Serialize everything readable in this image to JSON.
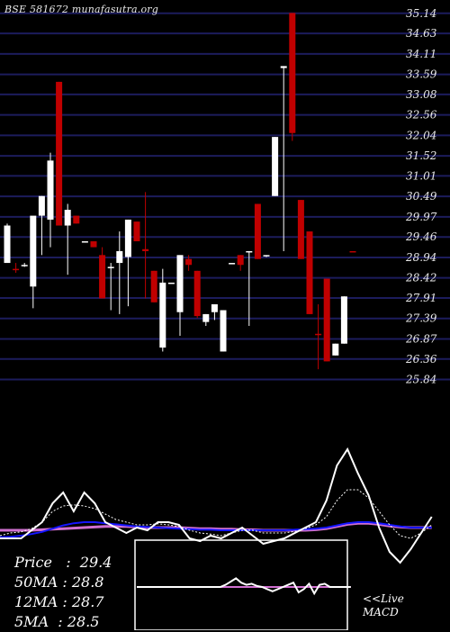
{
  "chart_data": {
    "type": "candlestick",
    "title": "BSE 581672 munafasutra.org",
    "ylim": [
      25.6,
      35.25
    ],
    "y_ticks": [
      "35.14",
      "34.63",
      "34.11",
      "33.59",
      "33.08",
      "32.56",
      "32.04",
      "31.52",
      "31.01",
      "30.49",
      "29.97",
      "29.46",
      "28.94",
      "28.42",
      "27.91",
      "27.39",
      "26.87",
      "26.36",
      "25.84"
    ],
    "candles": [
      {
        "open": 29.75,
        "high": 29.8,
        "low": 28.85,
        "close": 28.8,
        "dir": "up"
      },
      {
        "open": 28.65,
        "high": 28.8,
        "low": 28.55,
        "close": 28.65,
        "dir": "down"
      },
      {
        "open": 28.75,
        "high": 28.8,
        "low": 28.7,
        "close": 28.75,
        "dir": "flat"
      },
      {
        "open": 28.2,
        "high": 29.95,
        "low": 27.65,
        "close": 30.0,
        "dir": "up"
      },
      {
        "open": 30.0,
        "high": 30.5,
        "low": 29.0,
        "close": 30.5,
        "dir": "up"
      },
      {
        "open": 29.9,
        "high": 31.6,
        "low": 29.2,
        "close": 31.4,
        "dir": "up"
      },
      {
        "open": 33.4,
        "high": 33.4,
        "low": 29.8,
        "close": 29.75,
        "dir": "down"
      },
      {
        "open": 29.75,
        "high": 30.3,
        "low": 28.5,
        "close": 30.15,
        "dir": "up"
      },
      {
        "open": 30.0,
        "high": 30.0,
        "low": 29.8,
        "close": 29.8,
        "dir": "down"
      },
      {
        "open": 29.35,
        "high": 29.35,
        "low": 29.35,
        "close": 29.35,
        "dir": "flat"
      },
      {
        "open": 29.35,
        "high": 29.35,
        "low": 29.2,
        "close": 29.2,
        "dir": "down"
      },
      {
        "open": 29.0,
        "high": 29.2,
        "low": 27.9,
        "close": 27.9,
        "dir": "down"
      },
      {
        "open": 28.7,
        "high": 28.8,
        "low": 27.6,
        "close": 28.7,
        "dir": "up"
      },
      {
        "open": 28.8,
        "high": 29.6,
        "low": 27.5,
        "close": 29.1,
        "dir": "up"
      },
      {
        "open": 28.95,
        "high": 29.9,
        "low": 27.7,
        "close": 29.9,
        "dir": "up"
      },
      {
        "open": 29.85,
        "high": 29.85,
        "low": 29.35,
        "close": 29.35,
        "dir": "down"
      },
      {
        "open": 29.1,
        "high": 30.6,
        "low": 27.9,
        "close": 29.15,
        "dir": "down"
      },
      {
        "open": 28.6,
        "high": 28.6,
        "low": 27.8,
        "close": 27.8,
        "dir": "down"
      },
      {
        "open": 26.65,
        "high": 28.65,
        "low": 26.55,
        "close": 28.3,
        "dir": "up"
      },
      {
        "open": 28.3,
        "high": 28.3,
        "low": 28.3,
        "close": 28.3,
        "dir": "flat"
      },
      {
        "open": 27.55,
        "high": 29.0,
        "low": 26.95,
        "close": 29.0,
        "dir": "up"
      },
      {
        "open": 28.9,
        "high": 29.0,
        "low": 28.6,
        "close": 28.75,
        "dir": "down"
      },
      {
        "open": 28.6,
        "high": 28.6,
        "low": 27.4,
        "close": 27.45,
        "dir": "down"
      },
      {
        "open": 27.3,
        "high": 27.5,
        "low": 27.2,
        "close": 27.5,
        "dir": "up"
      },
      {
        "open": 27.55,
        "high": 27.75,
        "low": 27.35,
        "close": 27.75,
        "dir": "up"
      },
      {
        "open": 27.6,
        "high": 27.6,
        "low": 26.55,
        "close": 26.55,
        "dir": "up"
      },
      {
        "open": 28.8,
        "high": 28.8,
        "low": 28.8,
        "close": 28.8,
        "dir": "flat"
      },
      {
        "open": 28.75,
        "high": 29.0,
        "low": 28.6,
        "close": 29.0,
        "dir": "down"
      },
      {
        "open": 29.1,
        "high": 29.1,
        "low": 27.2,
        "close": 29.1,
        "dir": "up"
      },
      {
        "open": 28.9,
        "high": 30.3,
        "low": 28.9,
        "close": 30.3,
        "dir": "down"
      },
      {
        "open": 29.0,
        "high": 29.0,
        "low": 28.95,
        "close": 29.0,
        "dir": "up"
      },
      {
        "open": 30.5,
        "high": 32.0,
        "low": 30.5,
        "close": 32.0,
        "dir": "up"
      },
      {
        "open": 33.8,
        "high": 33.8,
        "low": 29.1,
        "close": 33.75,
        "dir": "up"
      },
      {
        "open": 35.15,
        "high": 35.15,
        "low": 31.9,
        "close": 32.1,
        "dir": "down"
      },
      {
        "open": 30.4,
        "high": 30.4,
        "low": 28.9,
        "close": 28.9,
        "dir": "down"
      },
      {
        "open": 29.6,
        "high": 29.6,
        "low": 27.5,
        "close": 27.5,
        "dir": "down"
      },
      {
        "open": 27.0,
        "high": 27.75,
        "low": 26.1,
        "close": 27.0,
        "dir": "down"
      },
      {
        "open": 28.4,
        "high": 28.4,
        "low": 26.3,
        "close": 26.3,
        "dir": "down"
      },
      {
        "open": 26.45,
        "high": 26.75,
        "low": 26.45,
        "close": 26.75,
        "dir": "up"
      },
      {
        "open": 26.75,
        "high": 27.95,
        "low": 26.75,
        "close": 27.95,
        "dir": "up"
      },
      {
        "open": 29.1,
        "high": 29.1,
        "low": 29.1,
        "close": 29.1,
        "dir": "down"
      }
    ],
    "ma": {
      "line_a": [
        -0.3,
        -0.3,
        -0.3,
        -0.15,
        0.0,
        0.35,
        0.55,
        0.2,
        0.55,
        0.35,
        0.0,
        -0.1,
        -0.2,
        -0.1,
        -0.15,
        0.0,
        0.0,
        -0.05,
        -0.3,
        -0.35,
        -0.25,
        -0.3,
        -0.2,
        -0.1,
        -0.25,
        -0.4,
        -0.35,
        -0.3,
        -0.2,
        -0.1,
        0.0,
        0.4,
        1.05,
        1.35,
        0.9,
        0.5,
        -0.1,
        -0.55,
        -0.75,
        -0.5,
        -0.2,
        0.1
      ],
      "line_b": [
        -0.25,
        -0.2,
        -0.18,
        -0.12,
        0.0,
        0.2,
        0.3,
        0.32,
        0.3,
        0.25,
        0.15,
        0.05,
        0.0,
        -0.05,
        -0.05,
        -0.03,
        -0.05,
        -0.08,
        -0.15,
        -0.2,
        -0.22,
        -0.25,
        -0.2,
        -0.15,
        -0.15,
        -0.2,
        -0.2,
        -0.2,
        -0.17,
        -0.12,
        -0.05,
        0.1,
        0.4,
        0.6,
        0.6,
        0.45,
        0.2,
        -0.05,
        -0.25,
        -0.3,
        -0.2,
        -0.05
      ],
      "line_c": [
        -0.28,
        -0.27,
        -0.25,
        -0.22,
        -0.18,
        -0.12,
        -0.06,
        -0.02,
        0.0,
        0.0,
        -0.02,
        -0.04,
        -0.06,
        -0.08,
        -0.09,
        -0.1,
        -0.11,
        -0.12,
        -0.13,
        -0.14,
        -0.14,
        -0.15,
        -0.15,
        -0.15,
        -0.15,
        -0.15,
        -0.15,
        -0.15,
        -0.14,
        -0.13,
        -0.12,
        -0.1,
        -0.06,
        -0.02,
        0.0,
        0.0,
        -0.02,
        -0.05,
        -0.08,
        -0.1,
        -0.1,
        -0.1
      ],
      "line_d": [
        -0.15,
        -0.15,
        -0.15,
        -0.15,
        -0.14,
        -0.13,
        -0.12,
        -0.11,
        -0.1,
        -0.09,
        -0.08,
        -0.08,
        -0.08,
        -0.09,
        -0.1,
        -0.1,
        -0.1,
        -0.1,
        -0.11,
        -0.12,
        -0.12,
        -0.13,
        -0.13,
        -0.14,
        -0.14,
        -0.15,
        -0.15,
        -0.15,
        -0.15,
        -0.15,
        -0.14,
        -0.12,
        -0.08,
        -0.04,
        -0.02,
        -0.02,
        -0.04,
        -0.07,
        -0.09,
        -0.1,
        -0.1,
        -0.1
      ]
    },
    "macd": {
      "line": [
        0.0,
        0.0,
        0.0,
        0.0,
        0.0,
        0.0,
        0.0,
        0.0,
        0.0,
        0.0,
        0.0,
        0.0,
        0.0,
        0.0,
        0.0,
        0.0,
        0.0,
        0.0,
        0.0,
        0.0,
        0.0,
        0.0,
        0.0,
        0.0,
        0.0,
        0.0,
        0.0,
        0.0,
        0.0,
        0.0,
        0.0,
        0.0,
        0.0,
        0.0,
        0.0,
        0.0,
        0.0,
        0.0,
        0.0,
        0.0,
        0.0,
        0.0
      ],
      "histogram_a": [
        0.0,
        0.0,
        0.0,
        0.0,
        0.0,
        0.0,
        0.0,
        0.0,
        0.0,
        0.0,
        0.0,
        0.0,
        0.0,
        0.0,
        0.0,
        0.0,
        0.0,
        0.0,
        0.0,
        0.0,
        0.0,
        0.0,
        0.0,
        0.0,
        0.0,
        0.0,
        0.0,
        0.0,
        0.0,
        0.0,
        0.0,
        0.0,
        0.0,
        0.0,
        0.0,
        0.0,
        0.0,
        0.0,
        0.0,
        0.0,
        0.0,
        0.0
      ],
      "histogram": [
        0.0,
        0.0,
        0.0,
        0.0,
        0.0,
        0.0,
        0.0,
        0.0,
        0.0,
        0.0,
        0.0,
        0.0,
        0.0,
        0.0,
        0.0,
        0.0,
        0.0,
        0.2,
        0.5,
        0.8,
        0.4,
        0.2,
        0.3,
        0.1,
        0.0,
        -0.2,
        -0.4,
        -0.2,
        0.0,
        0.2,
        0.4,
        -0.5,
        -0.2,
        0.3,
        -0.6,
        0.2,
        0.3,
        0.0,
        0.0,
        0.0,
        0.0,
        0.0
      ]
    },
    "colors": {
      "background": "#000000",
      "grid": "#1c1c5c",
      "up_candle": "#ffffff",
      "down_candle": "#c00000",
      "ma_white": "#ffffff",
      "ma_blue": "#1414ff",
      "ma_magenta": "#d070d0",
      "ma_dotted": "#ffffff"
    }
  },
  "stats": {
    "price_label": "Price",
    "price_value": "29.4",
    "ma50_label": "50MA",
    "ma50_value": "28.8",
    "ma12_label": "12MA",
    "ma12_value": "28.7",
    "ma5_label": "5MA",
    "ma5_value": "28.5"
  },
  "macd_label_line1": "<<Live",
  "macd_label_line2": "MACD"
}
